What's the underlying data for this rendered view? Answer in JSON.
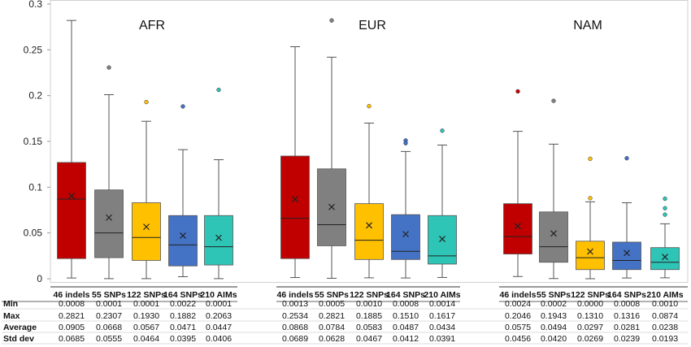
{
  "chart_data": {
    "type": "box",
    "ylim": [
      0,
      0.3
    ],
    "yticks": [
      "0",
      "0.05",
      "0.1",
      "0.15",
      "0.2",
      "0.25",
      "0.3"
    ],
    "grid": false,
    "groups": [
      {
        "name": "AFR",
        "boxes": [
          {
            "marker": "46 indels",
            "color": "#C00000",
            "min": 0.0008,
            "q1": 0.022,
            "median": 0.087,
            "q3": 0.127,
            "max": 0.2821,
            "mean": 0.0905,
            "std": 0.0685,
            "outliers": []
          },
          {
            "marker": "55 SNPs",
            "color": "#808080",
            "min": 0.0001,
            "q1": 0.023,
            "median": 0.05,
            "q3": 0.097,
            "max": 0.201,
            "mean": 0.0668,
            "std": 0.0555,
            "outliers": [
              0.2307
            ]
          },
          {
            "marker": "122 SNPs",
            "color": "#FFC000",
            "min": 0.0001,
            "q1": 0.02,
            "median": 0.045,
            "q3": 0.083,
            "max": 0.172,
            "mean": 0.0567,
            "std": 0.0464,
            "outliers": [
              0.193
            ]
          },
          {
            "marker": "164 SNPs",
            "color": "#4472C4",
            "min": 0.0022,
            "q1": 0.014,
            "median": 0.037,
            "q3": 0.069,
            "max": 0.141,
            "mean": 0.0471,
            "std": 0.0395,
            "outliers": [
              0.1882
            ]
          },
          {
            "marker": "210 AIMs",
            "color": "#2EC4B6",
            "min": 0.0001,
            "q1": 0.015,
            "median": 0.035,
            "q3": 0.069,
            "max": 0.13,
            "mean": 0.0447,
            "std": 0.0406,
            "outliers": [
              0.2063
            ]
          }
        ]
      },
      {
        "name": "EUR",
        "boxes": [
          {
            "marker": "46 indels",
            "color": "#C00000",
            "min": 0.0013,
            "q1": 0.022,
            "median": 0.066,
            "q3": 0.134,
            "max": 0.2534,
            "mean": 0.0868,
            "std": 0.0689,
            "outliers": []
          },
          {
            "marker": "55 SNPs",
            "color": "#808080",
            "min": 0.0005,
            "q1": 0.036,
            "median": 0.059,
            "q3": 0.12,
            "max": 0.242,
            "mean": 0.0784,
            "std": 0.0628,
            "outliers": [
              0.2821
            ]
          },
          {
            "marker": "122 SNPs",
            "color": "#FFC000",
            "min": 0.001,
            "q1": 0.021,
            "median": 0.042,
            "q3": 0.082,
            "max": 0.17,
            "mean": 0.0583,
            "std": 0.0467,
            "outliers": [
              0.1885
            ]
          },
          {
            "marker": "164 SNPs",
            "color": "#4472C4",
            "min": 0.0008,
            "q1": 0.021,
            "median": 0.03,
            "q3": 0.07,
            "max": 0.139,
            "mean": 0.0487,
            "std": 0.0412,
            "outliers": [
              0.151,
              0.148
            ]
          },
          {
            "marker": "210 AIMs",
            "color": "#2EC4B6",
            "min": 0.0014,
            "q1": 0.016,
            "median": 0.025,
            "q3": 0.069,
            "max": 0.146,
            "mean": 0.0434,
            "std": 0.0391,
            "outliers": [
              0.1617
            ]
          }
        ]
      },
      {
        "name": "NAM",
        "boxes": [
          {
            "marker": "46 indels",
            "color": "#C00000",
            "min": 0.0024,
            "q1": 0.027,
            "median": 0.046,
            "q3": 0.082,
            "max": 0.161,
            "mean": 0.0575,
            "std": 0.0456,
            "outliers": [
              0.2046
            ]
          },
          {
            "marker": "55 SNPs",
            "color": "#808080",
            "min": 0.0002,
            "q1": 0.018,
            "median": 0.035,
            "q3": 0.073,
            "max": 0.147,
            "mean": 0.0494,
            "std": 0.042,
            "outliers": [
              0.1943
            ]
          },
          {
            "marker": "122 SNPs",
            "color": "#FFC000",
            "min": 0.0,
            "q1": 0.01,
            "median": 0.023,
            "q3": 0.041,
            "max": 0.084,
            "mean": 0.0297,
            "std": 0.0269,
            "outliers": [
              0.131,
              0.088
            ]
          },
          {
            "marker": "164 SNPs",
            "color": "#4472C4",
            "min": 0.0008,
            "q1": 0.01,
            "median": 0.02,
            "q3": 0.04,
            "max": 0.083,
            "mean": 0.0281,
            "std": 0.0239,
            "outliers": [
              0.1316
            ]
          },
          {
            "marker": "210 AIMs",
            "color": "#2EC4B6",
            "min": 0.001,
            "q1": 0.01,
            "median": 0.018,
            "q3": 0.034,
            "max": 0.06,
            "mean": 0.0238,
            "std": 0.0193,
            "outliers": [
              0.0874,
              0.077,
              0.07
            ]
          }
        ]
      }
    ]
  },
  "summary_table": {
    "row_labels": [
      "Min",
      "Max",
      "Average",
      "Std dev"
    ],
    "groups": [
      {
        "columns": [
          "46 indels",
          "55 SNPs",
          "122 SNPs",
          "164 SNPs",
          "210 AIMs"
        ],
        "rows": [
          [
            "0.0008",
            "0.0001",
            "0.0001",
            "0.0022",
            "0.0001"
          ],
          [
            "0.2821",
            "0.2307",
            "0.1930",
            "0.1882",
            "0.2063"
          ],
          [
            "0.0905",
            "0.0668",
            "0.0567",
            "0.0471",
            "0.0447"
          ],
          [
            "0.0685",
            "0.0555",
            "0.0464",
            "0.0395",
            "0.0406"
          ]
        ]
      },
      {
        "columns": [
          "46 indels",
          "55 SNPs",
          "122 SNPs",
          "164 SNPs",
          "210 AIMs"
        ],
        "rows": [
          [
            "0.0013",
            "0.0005",
            "0.0010",
            "0.0008",
            "0.0014"
          ],
          [
            "0.2534",
            "0.2821",
            "0.1885",
            "0.1510",
            "0.1617"
          ],
          [
            "0.0868",
            "0.0784",
            "0.0583",
            "0.0487",
            "0.0434"
          ],
          [
            "0.0689",
            "0.0628",
            "0.0467",
            "0.0412",
            "0.0391"
          ]
        ]
      },
      {
        "columns": [
          "46 indels",
          "55 SNPs",
          "122 SNPs",
          "164 SNPs",
          "210 AIMs"
        ],
        "rows": [
          [
            "0.0024",
            "0.0002",
            "0.0000",
            "0.0008",
            "0.0010"
          ],
          [
            "0.2046",
            "0.1943",
            "0.1310",
            "0.1316",
            "0.0874"
          ],
          [
            "0.0575",
            "0.0494",
            "0.0297",
            "0.0281",
            "0.0238"
          ],
          [
            "0.0456",
            "0.0420",
            "0.0269",
            "0.0239",
            "0.0193"
          ]
        ]
      }
    ]
  }
}
